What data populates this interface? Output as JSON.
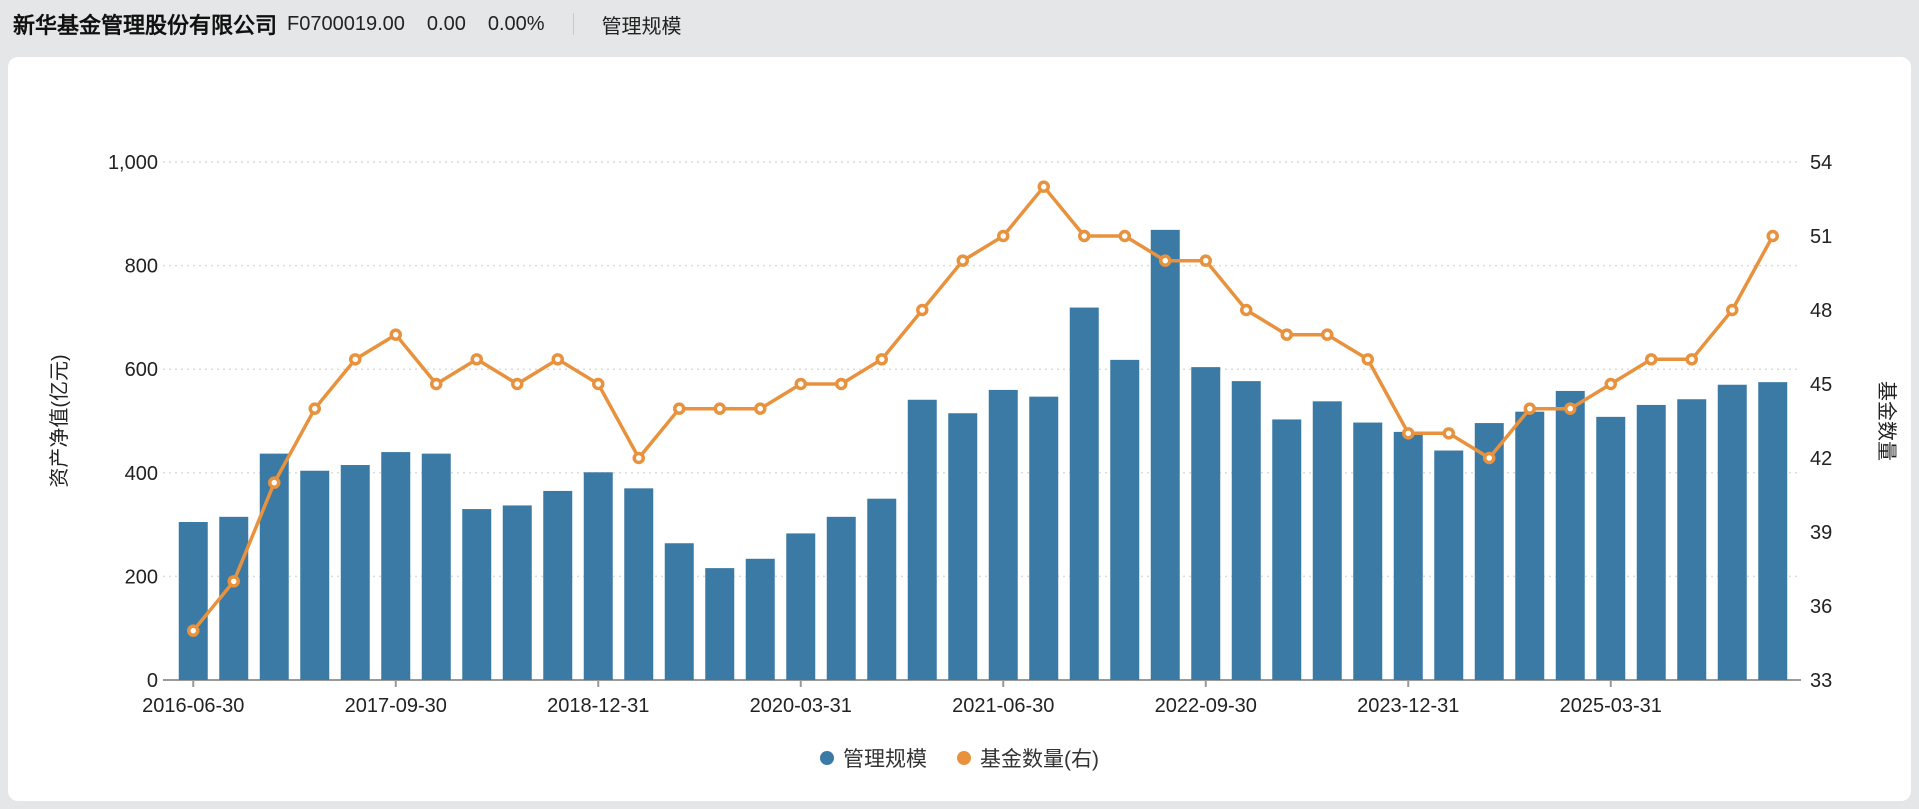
{
  "header": {
    "company": "新华基金管理股份有限公司",
    "code": "F0700019.00",
    "change": "0.00",
    "change_pct": "0.00%",
    "tab": "管理规模"
  },
  "chart_data": {
    "type": "bar",
    "subtype": "bar+line dual-axis combo",
    "categories": [
      "2016-06-30",
      "2016-09-30",
      "2016-12-31",
      "2017-03-31",
      "2017-06-30",
      "2017-09-30",
      "2017-12-31",
      "2018-03-31",
      "2018-06-30",
      "2018-09-30",
      "2018-12-31",
      "2019-03-31",
      "2019-06-30",
      "2019-09-30",
      "2019-12-31",
      "2020-03-31",
      "2020-06-30",
      "2020-09-30",
      "2020-12-31",
      "2021-03-31",
      "2021-06-30",
      "2021-09-30",
      "2021-12-31",
      "2022-03-31",
      "2022-06-30",
      "2022-09-30",
      "2022-12-31",
      "2023-03-31",
      "2023-06-30",
      "2023-09-30",
      "2023-12-31",
      "2024-03-31",
      "2024-06-30",
      "2024-09-30",
      "2024-12-31",
      "2025-03-31",
      "2025-06-30",
      "2025-09-30",
      "2025-12-31",
      "2026-03-31"
    ],
    "series": [
      {
        "name": "管理规模",
        "type": "bar",
        "axis": "left",
        "color": "#3B7AA5",
        "values": [
          305,
          315,
          437,
          404,
          415,
          440,
          437,
          330,
          337,
          365,
          401,
          370,
          264,
          216,
          234,
          283,
          315,
          350,
          541,
          515,
          560,
          547,
          719,
          618,
          869,
          604,
          577,
          503,
          538,
          497,
          479,
          443,
          496,
          518,
          558,
          508,
          531,
          542,
          570,
          575
        ]
      },
      {
        "name": "基金数量(右)",
        "type": "line",
        "axis": "right",
        "color": "#E8923E",
        "values": [
          35,
          37,
          41,
          44,
          46,
          47,
          45,
          46,
          45,
          46,
          45,
          42,
          44,
          44,
          44,
          45,
          45,
          46,
          48,
          50,
          51,
          53,
          51,
          51,
          50,
          50,
          48,
          47,
          47,
          46,
          43,
          43,
          42,
          44,
          44,
          45,
          46,
          46,
          48,
          51
        ]
      }
    ],
    "left_axis": {
      "title": "资产净值(亿元)",
      "ticks": [
        0,
        200,
        400,
        600,
        800,
        1000
      ],
      "min": 0,
      "max": 1000
    },
    "right_axis": {
      "title": "基金数量",
      "ticks": [
        33,
        36,
        39,
        42,
        45,
        48,
        51,
        54
      ],
      "min": 33,
      "max": 54
    },
    "x_label_every": 5,
    "x_tick_labels": [
      "2016-06-30",
      "2017-09-30",
      "2018-12-31",
      "2020-03-31",
      "2021-06-30",
      "2022-09-30",
      "2023-12-31",
      "2025-03-31"
    ],
    "grid": "dotted horizontal lines at left-axis ticks",
    "legend_position": "bottom-center"
  }
}
